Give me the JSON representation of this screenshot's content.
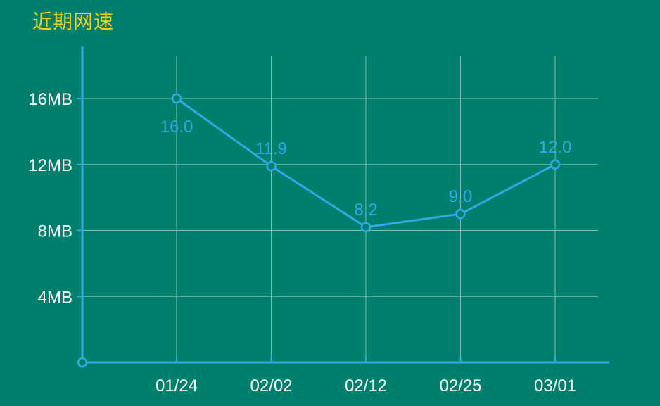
{
  "title": "近期网速",
  "chart_data": {
    "type": "line",
    "title": "近期网速",
    "xlabel": "",
    "ylabel": "",
    "categories": [
      "01/24",
      "02/02",
      "02/12",
      "02/25",
      "03/01"
    ],
    "series": [
      {
        "values": [
          16.0,
          11.9,
          8.2,
          9.0,
          12.0
        ],
        "data_labels": [
          "16.0",
          "11.9",
          "8.2",
          "9.0",
          "12.0"
        ]
      }
    ],
    "yticks": [
      4,
      8,
      12,
      16
    ],
    "ytick_labels": [
      "4MB",
      "8MB",
      "12MB",
      "16MB"
    ],
    "ylim": [
      0,
      18.5
    ],
    "grid": true,
    "legend": "none",
    "colors": {
      "background": "#00806c",
      "line": "#35a7e6",
      "axis": "#35a7e6",
      "grid": "#7fbfb3",
      "title": "#f5d21e",
      "tick_text": "#ffffff",
      "marker_fill": "#00806c"
    }
  }
}
